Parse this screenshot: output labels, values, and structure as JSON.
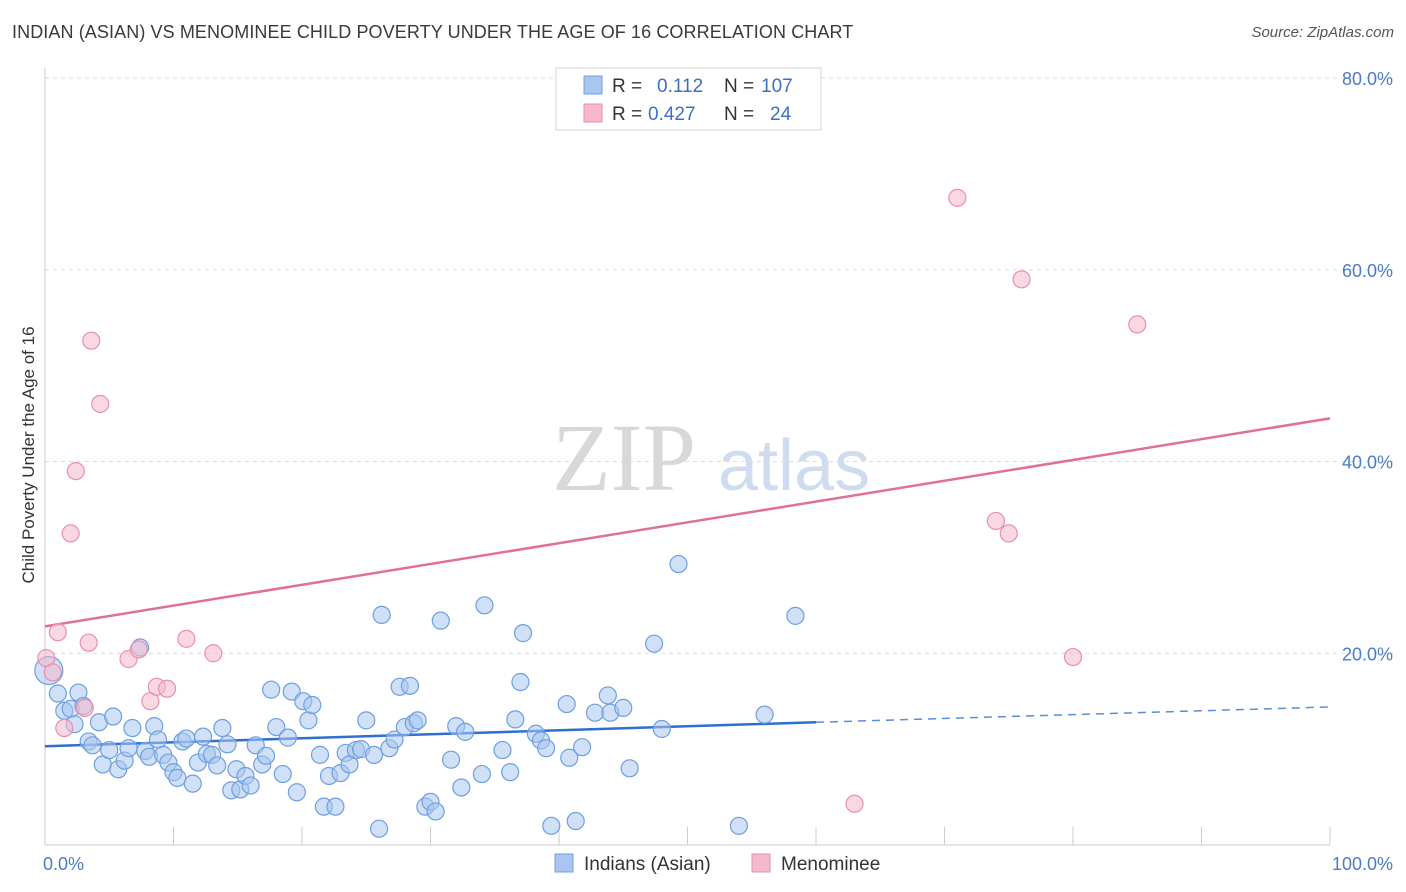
{
  "header": {
    "title": "INDIAN (ASIAN) VS MENOMINEE CHILD POVERTY UNDER THE AGE OF 16 CORRELATION CHART",
    "source": "Source: ZipAtlas.com"
  },
  "watermark": {
    "part1": "ZIP",
    "part2": "atlas"
  },
  "legend_top": {
    "rows": [
      {
        "r_label": "R =",
        "r_value": "0.112",
        "n_label": "N =",
        "n_value": "107",
        "color": "#a8c6f0"
      },
      {
        "r_label": "R =",
        "r_value": "0.427",
        "n_label": "N =",
        "n_value": "24",
        "color": "#f6b8cb"
      }
    ]
  },
  "legend_bottom": {
    "items": [
      {
        "label": "Indians (Asian)",
        "color": "#a8c6f0"
      },
      {
        "label": "Menominee",
        "color": "#f6b8cb"
      }
    ]
  },
  "chart_data": {
    "type": "scatter",
    "title": "INDIAN (ASIAN) VS MENOMINEE CHILD POVERTY UNDER THE AGE OF 16 CORRELATION CHART",
    "xlabel": "",
    "ylabel": "Child Poverty Under the Age of 16",
    "xlim": [
      0,
      100
    ],
    "ylim": [
      0,
      80
    ],
    "x_tick_labels": [
      "0.0%",
      "100.0%"
    ],
    "y_ticks": [
      20,
      40,
      60,
      80
    ],
    "y_tick_labels": [
      "20.0%",
      "40.0%",
      "60.0%",
      "80.0%"
    ],
    "grid": true,
    "legend_position": "top-center",
    "series": [
      {
        "name": "Indians (Asian)",
        "color": "#6f9fe0",
        "fill": "#a8c6f0",
        "r": "0.112",
        "n": "107",
        "trend": {
          "x0": 0,
          "y0": 10.3,
          "x1": 60,
          "y1": 12.8,
          "dashed_to_x": 100,
          "dashed_to_y": 14.4
        },
        "points": [
          [
            0.3,
            18.2
          ],
          [
            1,
            15.8
          ],
          [
            1.5,
            14.0
          ],
          [
            2,
            14.2
          ],
          [
            2.3,
            12.6
          ],
          [
            2.6,
            15.9
          ],
          [
            3,
            14.5
          ],
          [
            3.4,
            10.8
          ],
          [
            3.7,
            10.4
          ],
          [
            4.2,
            12.8
          ],
          [
            4.5,
            8.4
          ],
          [
            5,
            9.9
          ],
          [
            5.3,
            13.4
          ],
          [
            5.7,
            7.9
          ],
          [
            6.2,
            8.8
          ],
          [
            6.5,
            10.1
          ],
          [
            6.8,
            12.2
          ],
          [
            7.4,
            20.6
          ],
          [
            7.8,
            9.8
          ],
          [
            8.1,
            9.2
          ],
          [
            8.5,
            12.4
          ],
          [
            8.8,
            11.0
          ],
          [
            9.2,
            9.4
          ],
          [
            9.6,
            8.6
          ],
          [
            10.0,
            7.6
          ],
          [
            10.3,
            7.0
          ],
          [
            10.7,
            10.8
          ],
          [
            11.0,
            11.1
          ],
          [
            11.5,
            6.4
          ],
          [
            11.9,
            8.6
          ],
          [
            12.3,
            11.3
          ],
          [
            12.6,
            9.5
          ],
          [
            13.0,
            9.4
          ],
          [
            13.4,
            8.3
          ],
          [
            13.8,
            12.2
          ],
          [
            14.2,
            10.5
          ],
          [
            14.5,
            5.7
          ],
          [
            14.9,
            7.9
          ],
          [
            15.2,
            5.8
          ],
          [
            15.6,
            7.2
          ],
          [
            16.0,
            6.2
          ],
          [
            16.4,
            10.4
          ],
          [
            16.9,
            8.4
          ],
          [
            17.2,
            9.3
          ],
          [
            17.6,
            16.2
          ],
          [
            18.0,
            12.3
          ],
          [
            18.5,
            7.4
          ],
          [
            18.9,
            11.2
          ],
          [
            19.2,
            16.0
          ],
          [
            19.6,
            5.5
          ],
          [
            20.1,
            15.0
          ],
          [
            20.5,
            13.0
          ],
          [
            20.8,
            14.6
          ],
          [
            21.4,
            9.4
          ],
          [
            21.7,
            4.0
          ],
          [
            22.1,
            7.2
          ],
          [
            22.6,
            4.0
          ],
          [
            23.0,
            7.5
          ],
          [
            23.4,
            9.6
          ],
          [
            23.7,
            8.4
          ],
          [
            24.2,
            9.9
          ],
          [
            24.6,
            10.0
          ],
          [
            25.0,
            13.0
          ],
          [
            25.6,
            9.4
          ],
          [
            26.0,
            1.7
          ],
          [
            26.2,
            24.0
          ],
          [
            26.8,
            10.1
          ],
          [
            27.2,
            11.0
          ],
          [
            27.6,
            16.5
          ],
          [
            28.0,
            12.3
          ],
          [
            28.4,
            16.6
          ],
          [
            28.7,
            12.7
          ],
          [
            29.0,
            13.0
          ],
          [
            29.6,
            4.0
          ],
          [
            30.0,
            4.5
          ],
          [
            30.4,
            3.5
          ],
          [
            30.8,
            23.4
          ],
          [
            31.6,
            8.9
          ],
          [
            32.0,
            12.4
          ],
          [
            32.4,
            6.0
          ],
          [
            32.7,
            11.8
          ],
          [
            34.0,
            7.4
          ],
          [
            34.2,
            25.0
          ],
          [
            35.6,
            9.9
          ],
          [
            36.2,
            7.6
          ],
          [
            36.6,
            13.1
          ],
          [
            37.0,
            17.0
          ],
          [
            37.2,
            22.1
          ],
          [
            38.2,
            11.6
          ],
          [
            38.6,
            10.9
          ],
          [
            39.0,
            10.1
          ],
          [
            39.4,
            2.0
          ],
          [
            40.6,
            14.7
          ],
          [
            40.8,
            9.1
          ],
          [
            41.3,
            2.5
          ],
          [
            41.8,
            10.2
          ],
          [
            42.8,
            13.8
          ],
          [
            43.8,
            15.6
          ],
          [
            44.0,
            13.8
          ],
          [
            45.0,
            14.3
          ],
          [
            45.5,
            8.0
          ],
          [
            47.4,
            21.0
          ],
          [
            48.0,
            12.1
          ],
          [
            49.3,
            29.3
          ],
          [
            54.0,
            2.0
          ],
          [
            56.0,
            13.6
          ],
          [
            58.4,
            23.9
          ]
        ]
      },
      {
        "name": "Menominee",
        "color": "#ea8fae",
        "fill": "#f6b8cb",
        "r": "0.427",
        "n": "24",
        "trend": {
          "x0": 0,
          "y0": 22.8,
          "x1": 100,
          "y1": 44.5
        },
        "points": [
          [
            0.1,
            19.5
          ],
          [
            0.6,
            18.0
          ],
          [
            1.0,
            22.2
          ],
          [
            1.5,
            12.2
          ],
          [
            2.0,
            32.5
          ],
          [
            2.4,
            39.0
          ],
          [
            3.1,
            14.3
          ],
          [
            3.4,
            21.1
          ],
          [
            3.6,
            52.6
          ],
          [
            4.3,
            46.0
          ],
          [
            6.5,
            19.4
          ],
          [
            7.3,
            20.4
          ],
          [
            8.2,
            15.0
          ],
          [
            8.7,
            16.5
          ],
          [
            9.5,
            16.3
          ],
          [
            11.0,
            21.5
          ],
          [
            13.1,
            20.0
          ],
          [
            63.0,
            4.3
          ],
          [
            71.0,
            67.5
          ],
          [
            74.0,
            33.8
          ],
          [
            75.0,
            32.5
          ],
          [
            76.0,
            59.0
          ],
          [
            80.0,
            19.6
          ],
          [
            85.0,
            54.3
          ]
        ]
      }
    ]
  }
}
